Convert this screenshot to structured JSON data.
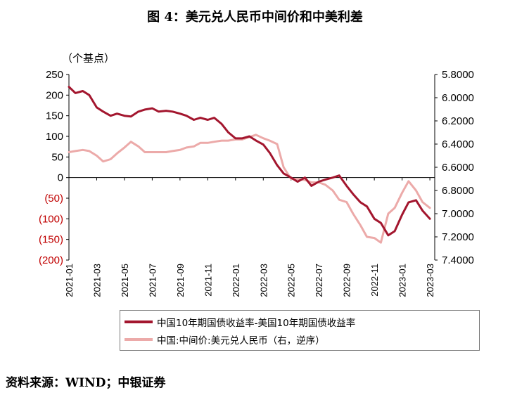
{
  "title": "图 4：美元兑人民币中间价和中美利差",
  "source": "资料来源：WIND；中银证券",
  "chart_data": {
    "type": "line",
    "ylabel_left": "（个基点）",
    "ylim_left": [
      -200,
      250
    ],
    "yticks_left": [
      {
        "value": 250,
        "label": "250",
        "color": "#000000"
      },
      {
        "value": 200,
        "label": "200",
        "color": "#000000"
      },
      {
        "value": 150,
        "label": "150",
        "color": "#000000"
      },
      {
        "value": 100,
        "label": "100",
        "color": "#000000"
      },
      {
        "value": 50,
        "label": "50",
        "color": "#000000"
      },
      {
        "value": 0,
        "label": "0",
        "color": "#000000"
      },
      {
        "value": -50,
        "label": "(50)",
        "color": "#c00000"
      },
      {
        "value": -100,
        "label": "(100)",
        "color": "#c00000"
      },
      {
        "value": -150,
        "label": "(150)",
        "color": "#c00000"
      },
      {
        "value": -200,
        "label": "(200)",
        "color": "#c00000"
      }
    ],
    "ylim_right": [
      5.8,
      7.4
    ],
    "y_right_inverted": true,
    "yticks_right": [
      "5.8000",
      "6.0000",
      "6.2000",
      "6.4000",
      "6.6000",
      "6.8000",
      "7.0000",
      "7.2000",
      "7.4000"
    ],
    "xticks": [
      "2021-01",
      "2021-03",
      "2021-05",
      "2021-07",
      "2021-09",
      "2021-11",
      "2022-01",
      "2022-03",
      "2022-05",
      "2022-07",
      "2022-09",
      "2022-11",
      "2023-01",
      "2023-03"
    ],
    "series": [
      {
        "name": "中国10年期国债收益率-美国10年期国债收益率",
        "axis": "left",
        "color": "#a3162e",
        "x": [
          "2021-01",
          "2021-01-15",
          "2021-02",
          "2021-02-15",
          "2021-03",
          "2021-03-15",
          "2021-04",
          "2021-04-15",
          "2021-05",
          "2021-05-15",
          "2021-06",
          "2021-06-15",
          "2021-07",
          "2021-07-15",
          "2021-08",
          "2021-08-15",
          "2021-09",
          "2021-09-15",
          "2021-10",
          "2021-10-15",
          "2021-11",
          "2021-11-15",
          "2021-12",
          "2021-12-15",
          "2022-01",
          "2022-01-15",
          "2022-02",
          "2022-02-15",
          "2022-03",
          "2022-03-15",
          "2022-04",
          "2022-04-15",
          "2022-05",
          "2022-05-15",
          "2022-06",
          "2022-06-15",
          "2022-07",
          "2022-07-15",
          "2022-08",
          "2022-08-15",
          "2022-09",
          "2022-09-15",
          "2022-10",
          "2022-10-15",
          "2022-11",
          "2022-11-15",
          "2022-12",
          "2022-12-15",
          "2023-01",
          "2023-01-15",
          "2023-02",
          "2023-02-15",
          "2023-03"
        ],
        "values": [
          220,
          205,
          210,
          200,
          170,
          160,
          150,
          155,
          150,
          148,
          160,
          165,
          168,
          160,
          162,
          160,
          155,
          150,
          140,
          145,
          140,
          145,
          130,
          110,
          95,
          95,
          100,
          90,
          80,
          60,
          30,
          10,
          0,
          -10,
          0,
          -20,
          -10,
          -5,
          0,
          5,
          -20,
          -40,
          -60,
          -70,
          -100,
          -110,
          -140,
          -130,
          -90,
          -60,
          -55,
          -80,
          -100
        ]
      },
      {
        "name": "中国:中间价:美元兑人民币（右，逆序）",
        "axis": "right",
        "color": "#ecaaa9",
        "x": [
          "2021-01",
          "2021-01-15",
          "2021-02",
          "2021-02-15",
          "2021-03",
          "2021-03-15",
          "2021-04",
          "2021-04-15",
          "2021-05",
          "2021-05-15",
          "2021-06",
          "2021-06-15",
          "2021-07",
          "2021-07-15",
          "2021-08",
          "2021-08-15",
          "2021-09",
          "2021-09-15",
          "2021-10",
          "2021-10-15",
          "2021-11",
          "2021-11-15",
          "2021-12",
          "2021-12-15",
          "2022-01",
          "2022-01-15",
          "2022-02",
          "2022-02-15",
          "2022-03",
          "2022-03-15",
          "2022-04",
          "2022-04-15",
          "2022-05",
          "2022-05-15",
          "2022-06",
          "2022-06-15",
          "2022-07",
          "2022-07-15",
          "2022-08",
          "2022-08-15",
          "2022-09",
          "2022-09-15",
          "2022-10",
          "2022-10-15",
          "2022-11",
          "2022-11-15",
          "2022-12",
          "2022-12-15",
          "2023-01",
          "2023-01-15",
          "2023-02",
          "2023-02-15",
          "2023-03"
        ],
        "values": [
          6.47,
          6.46,
          6.45,
          6.46,
          6.5,
          6.55,
          6.53,
          6.48,
          6.43,
          6.38,
          6.42,
          6.47,
          6.47,
          6.47,
          6.47,
          6.46,
          6.45,
          6.43,
          6.42,
          6.39,
          6.39,
          6.38,
          6.37,
          6.37,
          6.36,
          6.36,
          6.34,
          6.32,
          6.35,
          6.37,
          6.4,
          6.6,
          6.7,
          6.7,
          6.71,
          6.73,
          6.73,
          6.75,
          6.8,
          6.88,
          6.9,
          7.0,
          7.1,
          7.2,
          7.21,
          7.25,
          7.0,
          6.95,
          6.82,
          6.72,
          6.8,
          6.9,
          6.95
        ]
      }
    ]
  }
}
